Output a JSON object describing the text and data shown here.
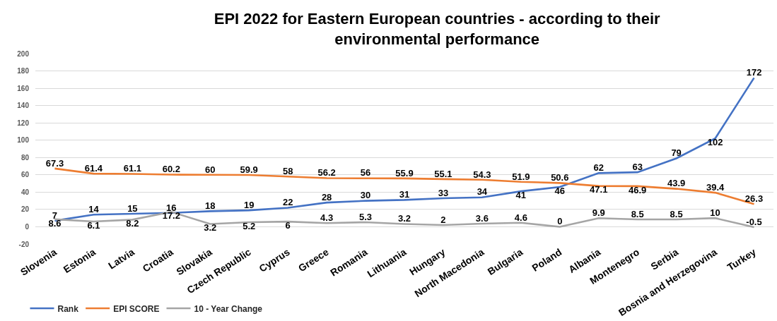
{
  "chart_data": {
    "type": "line",
    "title": "EPI 2022 for Eastern European countries - according to their environmental performance",
    "categories": [
      "Slovenia",
      "Estonia",
      "Latvia",
      "Croatia",
      "Slovakia",
      "Czech Republic",
      "Cyprus",
      "Greece",
      "Romania",
      "Lithuania",
      "Hungary",
      "North Macedonia",
      "Bulgaria",
      "Poland",
      "Albania",
      "Montenegro",
      "Serbia",
      "Bosnia and Herzegovina",
      "Turkey"
    ],
    "series": [
      {
        "name": "Rank",
        "color": "#4472c4",
        "values": [
          7,
          14,
          15,
          16,
          18,
          19,
          22,
          28,
          30,
          31,
          33,
          34,
          41,
          46,
          62,
          63,
          79,
          102,
          172
        ]
      },
      {
        "name": "EPI SCORE",
        "color": "#ed7d31",
        "values": [
          67.3,
          61.4,
          61.1,
          60.2,
          60,
          59.9,
          58,
          56.2,
          56,
          55.9,
          55.1,
          54.3,
          51.9,
          50.6,
          47.1,
          46.9,
          43.9,
          39.4,
          26.3
        ]
      },
      {
        "name": "10 - Year Change",
        "color": "#a5a5a5",
        "values": [
          8.6,
          6.1,
          8.2,
          17.2,
          3.2,
          5.2,
          6,
          4.3,
          5.3,
          3.2,
          2,
          3.6,
          4.6,
          0,
          9.9,
          8.5,
          8.5,
          10,
          -0.5
        ]
      }
    ],
    "ylim": [
      -20,
      200
    ],
    "yticks": [
      -20,
      0,
      20,
      40,
      60,
      80,
      100,
      120,
      140,
      160,
      180,
      200
    ],
    "grid": "y",
    "legend": "bottom left",
    "data_labels": true
  }
}
